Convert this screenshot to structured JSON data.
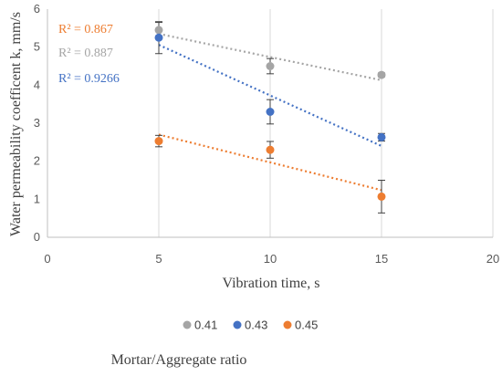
{
  "chart_data": {
    "type": "scatter",
    "xlabel": "Vibration time, s",
    "ylabel": "Water permeability coefficent k, mm/s",
    "xlim": [
      0,
      20
    ],
    "ylim": [
      0,
      6
    ],
    "x_ticks": [
      "0",
      "5",
      "10",
      "15",
      "20"
    ],
    "y_ticks": [
      "0",
      "1",
      "2",
      "3",
      "4",
      "5",
      "6"
    ],
    "grid": "vertical",
    "legend_position": "bottom",
    "legend_title": "Mortar/Aggregate ratio",
    "series": [
      {
        "name": "0.41",
        "color": "#a5a5a5",
        "x": [
          5,
          10,
          15
        ],
        "y": [
          5.45,
          4.5,
          4.27
        ],
        "error": [
          0.2,
          0.2,
          0.05
        ],
        "trendline": {
          "type": "linear",
          "x": [
            5,
            15
          ],
          "y": [
            5.35,
            4.13
          ],
          "r2": "R² = 0.887"
        }
      },
      {
        "name": "0.43",
        "color": "#4472c4",
        "x": [
          5,
          10,
          15
        ],
        "y": [
          5.25,
          3.3,
          2.63
        ],
        "error": [
          0.42,
          0.32,
          0.1
        ],
        "trendline": {
          "type": "linear",
          "x": [
            5,
            15
          ],
          "y": [
            5.06,
            2.4
          ],
          "r2": "R² = 0.9266"
        }
      },
      {
        "name": "0.45",
        "color": "#ed7d31",
        "x": [
          5,
          10,
          15
        ],
        "y": [
          2.53,
          2.3,
          1.07
        ],
        "error": [
          0.15,
          0.22,
          0.43
        ],
        "trendline": {
          "type": "linear",
          "x": [
            5,
            15
          ],
          "y": [
            2.7,
            1.24
          ],
          "r2": "R² = 0.867"
        }
      }
    ]
  }
}
